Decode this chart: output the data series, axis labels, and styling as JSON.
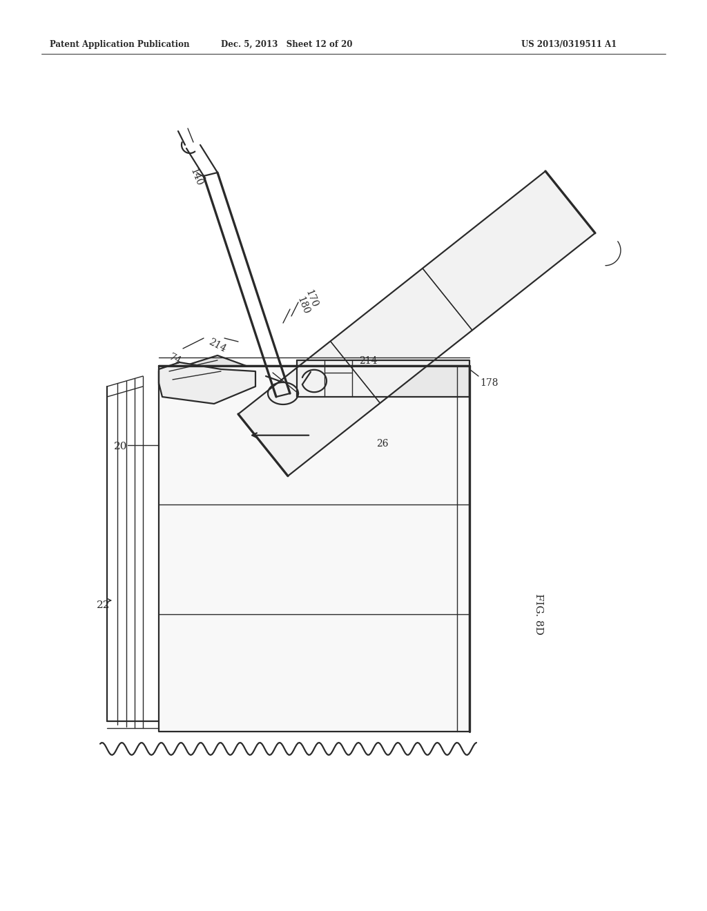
{
  "bg_color": "#ffffff",
  "line_color": "#2a2a2a",
  "header_left": "Patent Application Publication",
  "header_mid": "Dec. 5, 2013   Sheet 12 of 20",
  "header_right": "US 2013/0319511 A1",
  "fig_label": "FIG. 8D",
  "page_width": 10.24,
  "page_height": 13.2,
  "dpi": 100
}
